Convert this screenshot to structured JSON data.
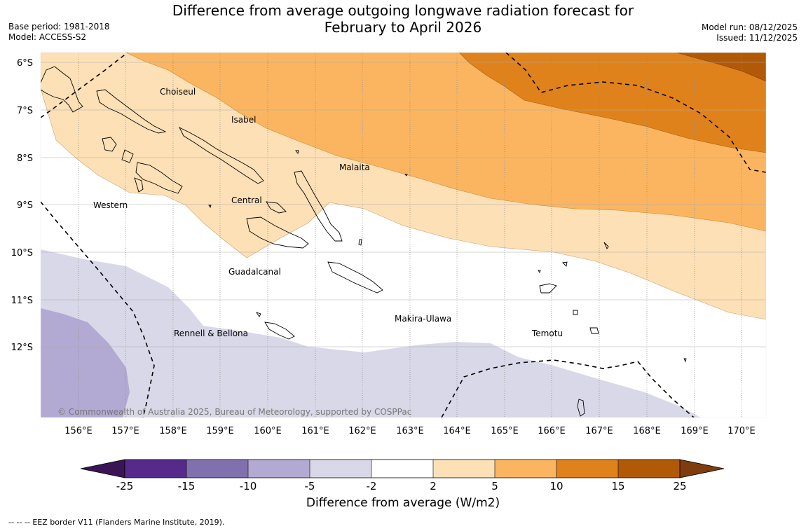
{
  "title": {
    "line1": "Difference from average outgoing longwave radiation forecast for",
    "line2": "February to April 2026"
  },
  "meta": {
    "base_period_label": "Base period:",
    "base_period": "1981-2018",
    "model_label": "Model:",
    "model": "ACCESS-S2",
    "model_run_label": "Model run:",
    "model_run": "08/12/2025",
    "issued_label": "Issued:",
    "issued": "11/12/2025"
  },
  "map": {
    "lon_ticks": [
      "156°E",
      "157°E",
      "158°E",
      "159°E",
      "160°E",
      "161°E",
      "162°E",
      "163°E",
      "164°E",
      "165°E",
      "166°E",
      "167°E",
      "168°E",
      "169°E",
      "170°E"
    ],
    "lat_ticks": [
      "6°S",
      "7°S",
      "8°S",
      "9°S",
      "10°S",
      "11°S",
      "12°S"
    ],
    "extent": {
      "lon_min": 155.2,
      "lon_max": 170.5,
      "lat_north": -5.8,
      "lat_south": -13.5
    },
    "regions": [
      "Choiseul",
      "Isabel",
      "Malaita",
      "Central",
      "Western",
      "Guadalcanal",
      "Makira-Ulawa",
      "Rennell & Bellona",
      "Temotu"
    ],
    "copyright": "© Commonwealth of Australia 2025, Bureau of Meteorology, supported by COSPPac"
  },
  "colorbar": {
    "labels": [
      "-25",
      "-15",
      "-10",
      "-5",
      "-2",
      "2",
      "5",
      "10",
      "15",
      "25"
    ],
    "colors": [
      "#3b1456",
      "#562a8a",
      "#8071ae",
      "#b2aad2",
      "#d9d8e8",
      "#ffffff",
      "#fde0b6",
      "#fbb561",
      "#e0821b",
      "#b25908",
      "#7f3c0c"
    ],
    "title": "Difference from average (W/m2)"
  },
  "footer": {
    "legend_symbol": "--  --  --",
    "legend_text": "EEZ border V11 (Flanders Marine Institute, 2019)."
  }
}
